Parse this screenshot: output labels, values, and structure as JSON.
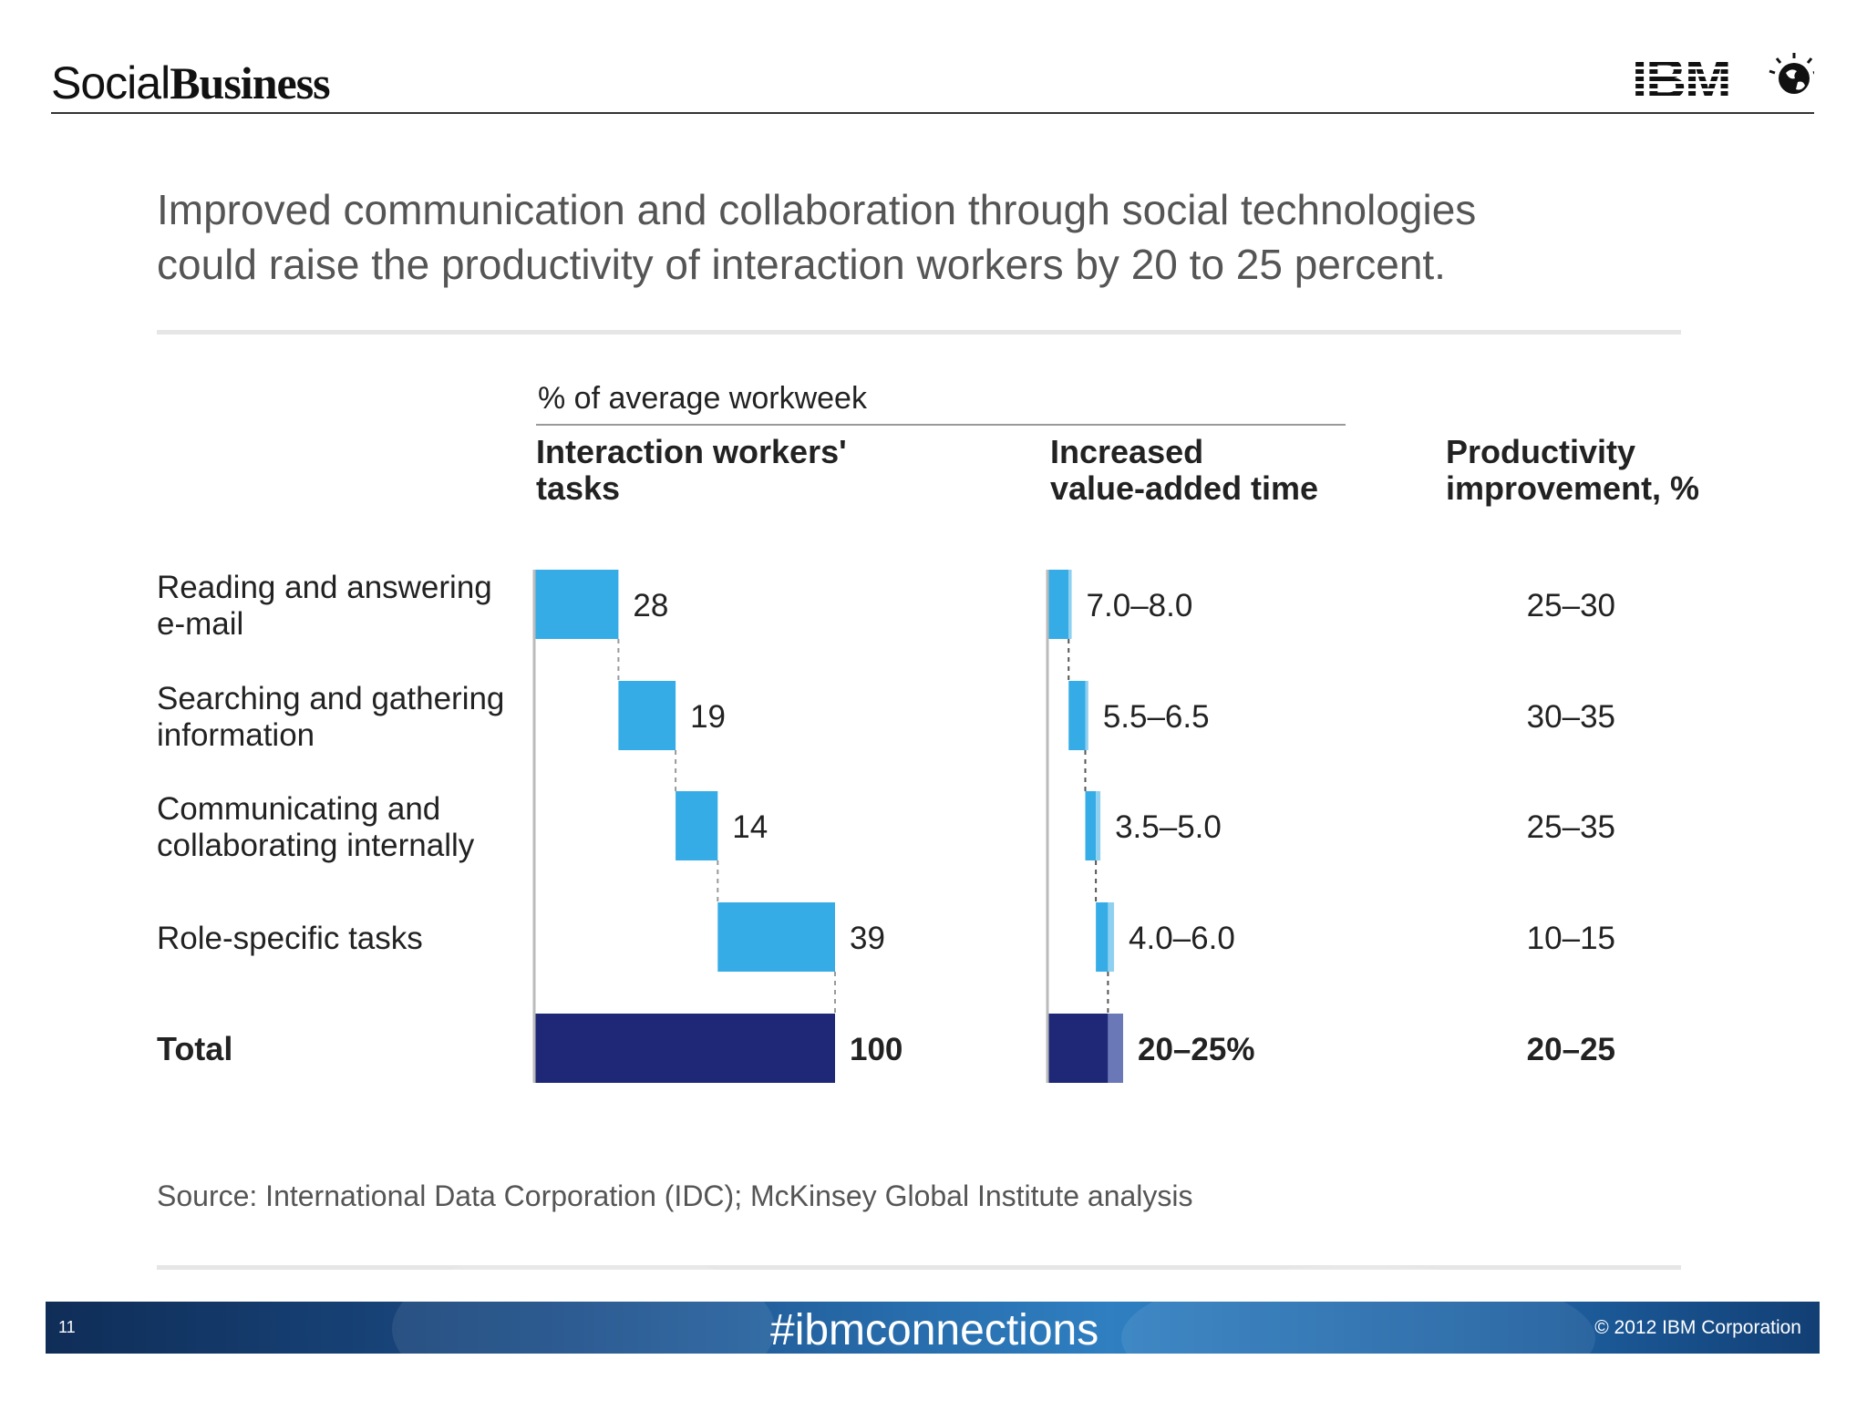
{
  "brand": {
    "part1": "Social",
    "part2": "Business"
  },
  "logo": {
    "text": "IBM"
  },
  "headline": {
    "line1": "Improved communication and collaboration through social technologies",
    "line2": "could raise the productivity of interaction workers by 20 to 25 percent."
  },
  "colors": {
    "bar_light": "#35ace6",
    "bar_dark": "#1e2877",
    "bar_accent": "#6a78b8",
    "text_grey": "#555555"
  },
  "chart_data": {
    "type": "bar",
    "title": "",
    "group_header": "% of average workweek",
    "column_headers": {
      "tasks": "Interaction workers' tasks",
      "time": "Increased value-added time",
      "productivity": "Productivity improvement, %"
    },
    "rows": [
      {
        "label": "Reading and answering e-mail",
        "share": 28,
        "time_label": "7.0–8.0",
        "time_low": 7.0,
        "time_high": 8.0,
        "productivity": "25–30"
      },
      {
        "label": "Searching and gathering information",
        "share": 19,
        "time_label": "5.5–6.5",
        "time_low": 5.5,
        "time_high": 6.5,
        "productivity": "30–35"
      },
      {
        "label": "Communicating and collaborating internally",
        "share": 14,
        "time_label": "3.5–5.0",
        "time_low": 3.5,
        "time_high": 5.0,
        "productivity": "25–35"
      },
      {
        "label": "Role-specific tasks",
        "share": 39,
        "time_label": "4.0–6.0",
        "time_low": 4.0,
        "time_high": 6.0,
        "productivity": "10–15"
      }
    ],
    "total": {
      "label": "Total",
      "share": 100,
      "time_label": "20–25%",
      "time_low": 20,
      "time_high": 25,
      "productivity": "20–25"
    }
  },
  "source": "Source: International Data Corporation (IDC); McKinsey Global Institute analysis",
  "footer": {
    "page_number": "11",
    "hashtag": "#ibmconnections",
    "copyright": "© 2012 IBM Corporation"
  }
}
